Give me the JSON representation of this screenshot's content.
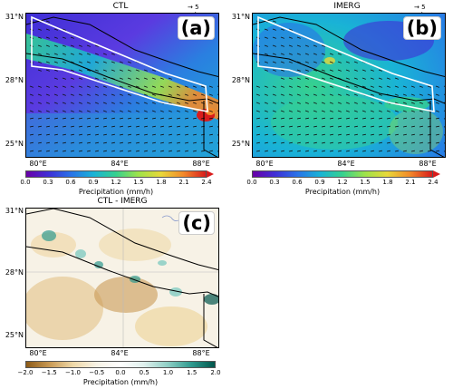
{
  "panel_a": {
    "title": "CTL",
    "tag": "(a)",
    "vector_label": "→ 5 m/s",
    "colorbar": {
      "label": "Precipitation (mm/h)",
      "ticks": [
        "0.0",
        "0.3",
        "0.6",
        "0.9",
        "1.2",
        "1.5",
        "1.8",
        "2.1",
        "2.4"
      ]
    }
  },
  "panel_b": {
    "title": "IMERG",
    "tag": "(b)",
    "vector_label": "→ 5 m/s",
    "colorbar": {
      "label": "Precipitation (mm/h)",
      "ticks": [
        "0.0",
        "0.3",
        "0.6",
        "0.9",
        "1.2",
        "1.5",
        "1.8",
        "2.1",
        "2.4"
      ]
    }
  },
  "panel_c": {
    "title": "CTL - IMERG",
    "tag": "(c)",
    "colorbar": {
      "label": "Precipitation (mm/h)",
      "ticks": [
        "−2.0",
        "−1.5",
        "−1.0",
        "−0.5",
        "0.0",
        "0.5",
        "1.0",
        "1.5",
        "2.0"
      ]
    }
  },
  "axes": {
    "lat_labels": [
      "31°N",
      "28°N",
      "25°N"
    ],
    "lon_labels": [
      "80°E",
      "84°E",
      "88°E"
    ]
  },
  "colors": {
    "precip_scale": [
      "#6a00a8",
      "#3f2fd6",
      "#2a73e8",
      "#19b3d6",
      "#36d18f",
      "#9ee34a",
      "#e8d83a",
      "#f28a2a",
      "#d91c1c"
    ],
    "diff_scale": [
      "#8c5a17",
      "#c99a55",
      "#efd9a9",
      "#f7f2e6",
      "#ffffff",
      "#dff0ed",
      "#8fcfc5",
      "#2f9a8f",
      "#00564c"
    ]
  },
  "chart_data": [
    {
      "type": "heatmap",
      "title": "CTL",
      "variable": "Precipitation (mm/h)",
      "x_range": [
        79.5,
        89
      ],
      "y_range": [
        24.5,
        31.2
      ],
      "colorbar_range": [
        0.0,
        2.4
      ],
      "overlay": "wind vectors, reference 5 m/s"
    },
    {
      "type": "heatmap",
      "title": "IMERG",
      "variable": "Precipitation (mm/h)",
      "x_range": [
        79.5,
        89
      ],
      "y_range": [
        24.5,
        31.2
      ],
      "colorbar_range": [
        0.0,
        2.4
      ],
      "overlay": "wind vectors, reference 5 m/s"
    },
    {
      "type": "heatmap",
      "title": "CTL - IMERG",
      "variable": "Precipitation (mm/h)",
      "x_range": [
        79.5,
        89
      ],
      "y_range": [
        24.5,
        31.2
      ],
      "colorbar_range": [
        -2.0,
        2.0
      ]
    }
  ]
}
